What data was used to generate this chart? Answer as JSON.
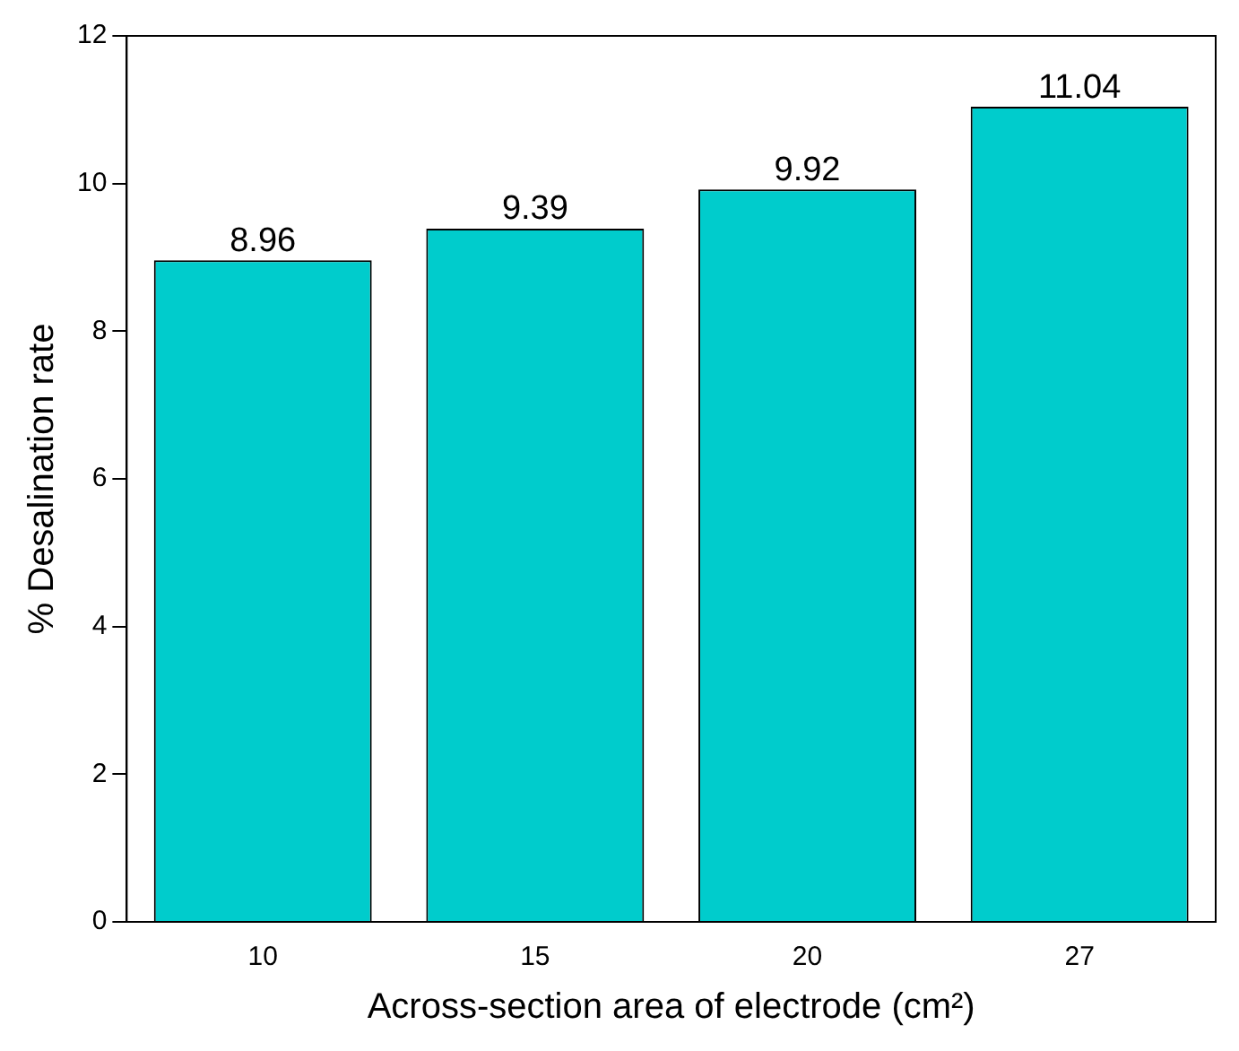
{
  "chart_data": {
    "type": "bar",
    "xlabel": "Across-section area of electrode (cm²)",
    "ylabel": "% Desalination rate",
    "categories": [
      "10",
      "15",
      "20",
      "27"
    ],
    "values": [
      8.96,
      9.39,
      9.92,
      11.04
    ],
    "color": "#00cccc",
    "ylim": [
      0,
      12
    ],
    "yticks": [
      0,
      2,
      4,
      6,
      8,
      10,
      12
    ],
    "data_labels": true,
    "grid": false,
    "legend": false
  }
}
